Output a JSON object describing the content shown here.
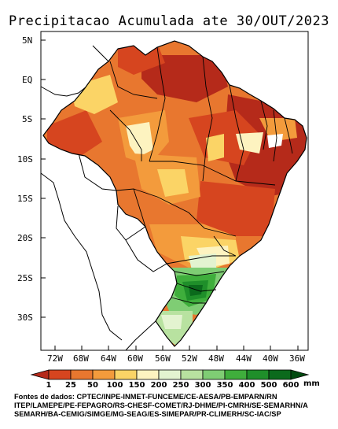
{
  "title": "Precipitacao Acumulada ate 30/OUT/2023",
  "lat_labels": [
    "5N",
    "EQ",
    "5S",
    "10S",
    "15S",
    "20S",
    "25S",
    "30S"
  ],
  "lon_labels": [
    "72W",
    "68W",
    "64W",
    "60W",
    "56W",
    "52W",
    "48W",
    "44W",
    "40W",
    "36W"
  ],
  "legend": {
    "ticks": [
      "1",
      "25",
      "50",
      "100",
      "150",
      "200",
      "250",
      "300",
      "350",
      "400",
      "500",
      "600"
    ],
    "unit": "mm",
    "colors": [
      "#b52a1a",
      "#d6451f",
      "#e8772f",
      "#f39b3c",
      "#fbd466",
      "#fdf3c0",
      "#e3f3d0",
      "#b8e2a0",
      "#7fcd74",
      "#3fae3c",
      "#1f8f2a",
      "#0b6a1c",
      "#024a10"
    ]
  },
  "sources": [
    "Fontes de dados: CPTEC/INPE-INMET-FUNCEME/CE-AESA/PB-EMPARN/RN",
    "ITEP/LAMEPE/PE-FEPAGRO/RS-CHESF-COMET/RJ-DHME/PI-CMRH/SE-SEMARHN/A",
    "SEMARH/BA-CEMIG/SIMGE/MG-SEAG/ES-SIMEPAR/PR-CLIMERH/SC-IAC/SP"
  ],
  "map_data": {
    "region": "Brazil",
    "lon_range": [
      -74,
      -35
    ],
    "lat_range": [
      -34,
      6
    ],
    "colors": {
      "ocean": "#ffffff",
      "land_outside": "#ffffff",
      "border": "#000000"
    }
  }
}
